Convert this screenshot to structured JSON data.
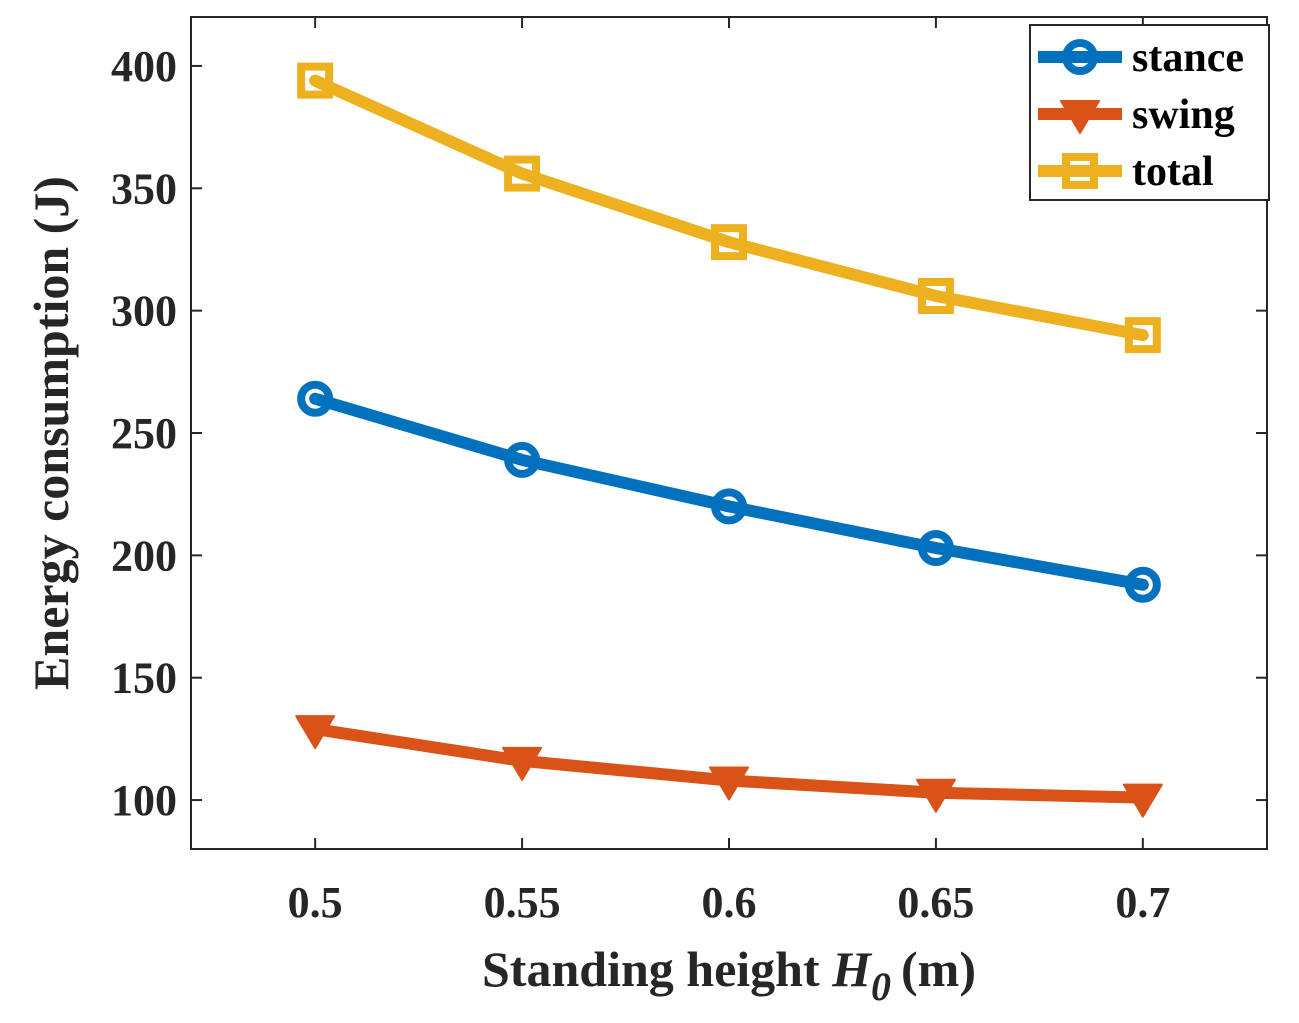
{
  "chart_data": {
    "type": "line",
    "title": "",
    "xlabel": "Standing height",
    "xlabel_var": "H",
    "xlabel_sub": "0",
    "xlabel_unit": "(m)",
    "ylabel": "Energy consumption (J)",
    "x": [
      0.5,
      0.55,
      0.6,
      0.65,
      0.7
    ],
    "xlim": [
      0.47,
      0.73
    ],
    "ylim": [
      80,
      420
    ],
    "xticks": [
      "0.5",
      "0.55",
      "0.6",
      "0.65",
      "0.7"
    ],
    "yticks": [
      100,
      150,
      200,
      250,
      300,
      350,
      400
    ],
    "legend_position": "top-right",
    "series": [
      {
        "name": "stance",
        "color": "#0072BD",
        "marker": "circle",
        "values": [
          264,
          239,
          220,
          203,
          188
        ]
      },
      {
        "name": "swing",
        "color": "#D95319",
        "marker": "triangle-down",
        "values": [
          129,
          116,
          108,
          103,
          101
        ]
      },
      {
        "name": "total",
        "color": "#EDB120",
        "marker": "square",
        "values": [
          394,
          356,
          328,
          306,
          290
        ]
      }
    ]
  }
}
